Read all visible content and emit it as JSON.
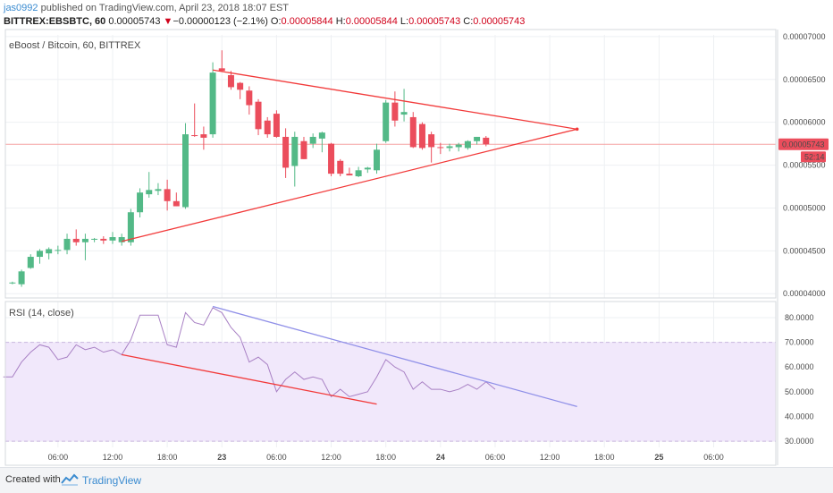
{
  "header": {
    "username": "jas0992",
    "published": " published on TradingView.com, April 23, 2018 18:07 EST"
  },
  "ticker": {
    "symbol": "BITTREX:EBSBTC, 60",
    "price": "0.00005743",
    "change_arrow": "▼",
    "change": "−0.00000123 (−2.1%)",
    "o_label": "O:",
    "o": "0.00005844",
    "h_label": "H:",
    "h": "0.00005844",
    "l_label": "L:",
    "l": "0.00005743",
    "c_label": "C:",
    "c": "0.00005743"
  },
  "footer": {
    "created": "Created with",
    "brand": "TradingView"
  },
  "colors": {
    "up": "#53b987",
    "down": "#eb4d5c",
    "trend": "#f23a3a",
    "rsi": "#a880c4",
    "rsi_trend": "#8f8fe8",
    "rsi_band": "#f1e8fb",
    "price_line": "#f5a3a3",
    "badge": "#eb4d5c"
  },
  "chart_data": [
    {
      "type": "candlestick",
      "title": "eBoost / Bitcoin, 60, BITTREX",
      "ylim": [
        3.95e-05,
        7.02e-05
      ],
      "y_ticks": [
        "0.00007000",
        "0.00006500",
        "0.00006000",
        "0.00005500",
        "0.00005000",
        "0.00004500",
        "0.00004000"
      ],
      "y_tick_values": [
        7e-05,
        6.5e-05,
        6e-05,
        5.5e-05,
        5e-05,
        4.5e-05,
        4e-05
      ],
      "x_ticks": [
        "06:00",
        "12:00",
        "18:00",
        "23",
        "06:00",
        "12:00",
        "18:00",
        "24",
        "06:00",
        "12:00",
        "18:00",
        "25",
        "06:00"
      ],
      "x_tick_values": [
        6,
        12,
        18,
        24,
        30,
        36,
        42,
        48,
        54,
        60,
        66,
        72,
        78
      ],
      "current_price": "0.00005743",
      "current_value": 5.743e-05,
      "countdown": "52:14",
      "candles": [
        {
          "t": 1,
          "o": 4.125e-05,
          "h": 4.14e-05,
          "l": 4.11e-05,
          "c": 4.13e-05
        },
        {
          "t": 2,
          "o": 4.11e-05,
          "h": 4.28e-05,
          "l": 4.08e-05,
          "c": 4.26e-05
        },
        {
          "t": 3,
          "o": 4.3e-05,
          "h": 4.46e-05,
          "l": 4.29e-05,
          "c": 4.43e-05
        },
        {
          "t": 4,
          "o": 4.43e-05,
          "h": 4.52e-05,
          "l": 4.35e-05,
          "c": 4.5e-05
        },
        {
          "t": 5,
          "o": 4.47e-05,
          "h": 4.54e-05,
          "l": 4.4e-05,
          "c": 4.52e-05
        },
        {
          "t": 6,
          "o": 4.5e-05,
          "h": 4.56e-05,
          "l": 4.46e-05,
          "c": 4.51e-05
        },
        {
          "t": 7,
          "o": 4.51e-05,
          "h": 4.7e-05,
          "l": 4.46e-05,
          "c": 4.64e-05
        },
        {
          "t": 8,
          "o": 4.64e-05,
          "h": 4.75e-05,
          "l": 4.56e-05,
          "c": 4.6e-05
        },
        {
          "t": 9,
          "o": 4.6e-05,
          "h": 4.7e-05,
          "l": 4.39e-05,
          "c": 4.64e-05
        },
        {
          "t": 10,
          "o": 4.64e-05,
          "h": 4.65e-05,
          "l": 4.6e-05,
          "c": 4.64e-05
        },
        {
          "t": 11,
          "o": 4.64e-05,
          "h": 4.67e-05,
          "l": 4.58e-05,
          "c": 4.62e-05
        },
        {
          "t": 12,
          "o": 4.62e-05,
          "h": 4.72e-05,
          "l": 4.58e-05,
          "c": 4.66e-05
        },
        {
          "t": 13,
          "o": 4.6e-05,
          "h": 4.7e-05,
          "l": 4.56e-05,
          "c": 4.66e-05
        },
        {
          "t": 14,
          "o": 4.6e-05,
          "h": 4.99e-05,
          "l": 4.56e-05,
          "c": 4.95e-05
        },
        {
          "t": 15,
          "o": 4.95e-05,
          "h": 5.23e-05,
          "l": 4.89e-05,
          "c": 5.18e-05
        },
        {
          "t": 16,
          "o": 5.16e-05,
          "h": 5.42e-05,
          "l": 5.12e-05,
          "c": 5.21e-05
        },
        {
          "t": 17,
          "o": 5.2e-05,
          "h": 5.29e-05,
          "l": 5.15e-05,
          "c": 5.22e-05
        },
        {
          "t": 18,
          "o": 5.22e-05,
          "h": 5.33e-05,
          "l": 4.97e-05,
          "c": 5.08e-05
        },
        {
          "t": 19,
          "o": 5.08e-05,
          "h": 5.18e-05,
          "l": 5.02e-05,
          "c": 5.02e-05
        },
        {
          "t": 20,
          "o": 5.01e-05,
          "h": 5.99e-05,
          "l": 4.99e-05,
          "c": 5.86e-05
        },
        {
          "t": 21,
          "o": 5.85e-05,
          "h": 6.22e-05,
          "l": 5.83e-05,
          "c": 5.84e-05
        },
        {
          "t": 22,
          "o": 5.86e-05,
          "h": 5.95e-05,
          "l": 5.68e-05,
          "c": 5.82e-05
        },
        {
          "t": 23,
          "o": 5.86e-05,
          "h": 6.7e-05,
          "l": 5.82e-05,
          "c": 6.58e-05
        },
        {
          "t": 24,
          "o": 6.63e-05,
          "h": 6.84e-05,
          "l": 6.59e-05,
          "c": 6.6e-05
        },
        {
          "t": 25,
          "o": 6.55e-05,
          "h": 6.6e-05,
          "l": 6.38e-05,
          "c": 6.41e-05
        },
        {
          "t": 26,
          "o": 6.46e-05,
          "h": 6.47e-05,
          "l": 6.27e-05,
          "c": 6.38e-05
        },
        {
          "t": 27,
          "o": 6.37e-05,
          "h": 6.42e-05,
          "l": 6.09e-05,
          "c": 6.2e-05
        },
        {
          "t": 28,
          "o": 6.24e-05,
          "h": 6.27e-05,
          "l": 5.85e-05,
          "c": 5.92e-05
        },
        {
          "t": 29,
          "o": 6.02e-05,
          "h": 6.06e-05,
          "l": 5.82e-05,
          "c": 5.86e-05
        },
        {
          "t": 30,
          "o": 6.1e-05,
          "h": 6.14e-05,
          "l": 5.82e-05,
          "c": 5.83e-05
        },
        {
          "t": 31,
          "o": 5.83e-05,
          "h": 5.93e-05,
          "l": 5.35e-05,
          "c": 5.47e-05
        },
        {
          "t": 32,
          "o": 5.49e-05,
          "h": 5.89e-05,
          "l": 5.25e-05,
          "c": 5.83e-05
        },
        {
          "t": 33,
          "o": 5.78e-05,
          "h": 5.83e-05,
          "l": 5.57e-05,
          "c": 5.57e-05
        },
        {
          "t": 34,
          "o": 5.75e-05,
          "h": 5.87e-05,
          "l": 5.7e-05,
          "c": 5.83e-05
        },
        {
          "t": 35,
          "o": 5.81e-05,
          "h": 5.89e-05,
          "l": 5.65e-05,
          "c": 5.88e-05
        },
        {
          "t": 36,
          "o": 5.75e-05,
          "h": 5.76e-05,
          "l": 5.37e-05,
          "c": 5.4e-05
        },
        {
          "t": 37,
          "o": 5.55e-05,
          "h": 5.57e-05,
          "l": 5.37e-05,
          "c": 5.4e-05
        },
        {
          "t": 38,
          "o": 5.4e-05,
          "h": 5.47e-05,
          "l": 5.38e-05,
          "c": 5.38e-05
        },
        {
          "t": 39,
          "o": 5.37e-05,
          "h": 5.48e-05,
          "l": 5.36e-05,
          "c": 5.44e-05
        },
        {
          "t": 40,
          "o": 5.45e-05,
          "h": 5.48e-05,
          "l": 5.41e-05,
          "c": 5.47e-05
        },
        {
          "t": 41,
          "o": 5.44e-05,
          "h": 5.75e-05,
          "l": 5.4e-05,
          "c": 5.68e-05
        },
        {
          "t": 42,
          "o": 5.78e-05,
          "h": 6.26e-05,
          "l": 5.76e-05,
          "c": 6.23e-05
        },
        {
          "t": 43,
          "o": 6.23e-05,
          "h": 6.36e-05,
          "l": 5.95e-05,
          "c": 6.02e-05
        },
        {
          "t": 44,
          "o": 6.09e-05,
          "h": 6.39e-05,
          "l": 6.01e-05,
          "c": 6.12e-05
        },
        {
          "t": 45,
          "o": 6.06e-05,
          "h": 6.12e-05,
          "l": 5.7e-05,
          "c": 5.71e-05
        },
        {
          "t": 46,
          "o": 5.98e-05,
          "h": 6e-05,
          "l": 5.68e-05,
          "c": 5.7e-05
        },
        {
          "t": 47,
          "o": 5.86e-05,
          "h": 5.89e-05,
          "l": 5.53e-05,
          "c": 5.71e-05
        },
        {
          "t": 48,
          "o": 5.71e-05,
          "h": 5.76e-05,
          "l": 5.63e-05,
          "c": 5.7e-05
        },
        {
          "t": 49,
          "o": 5.7e-05,
          "h": 5.75e-05,
          "l": 5.66e-05,
          "c": 5.72e-05
        },
        {
          "t": 50,
          "o": 5.71e-05,
          "h": 5.76e-05,
          "l": 5.66e-05,
          "c": 5.74e-05
        },
        {
          "t": 51,
          "o": 5.7e-05,
          "h": 5.79e-05,
          "l": 5.68e-05,
          "c": 5.78e-05
        },
        {
          "t": 52,
          "o": 5.78e-05,
          "h": 5.83e-05,
          "l": 5.74e-05,
          "c": 5.83e-05
        },
        {
          "t": 53,
          "o": 5.82e-05,
          "h": 5.84e-05,
          "l": 5.72e-05,
          "c": 5.743e-05
        }
      ],
      "trendlines": [
        {
          "from": [
            23,
            6.61e-05
          ],
          "to": [
            63,
            5.92e-05
          ]
        },
        {
          "from": [
            13,
            4.61e-05
          ],
          "to": [
            63,
            5.92e-05
          ]
        }
      ]
    },
    {
      "type": "line",
      "title": "RSI (14, close)",
      "ylim": [
        27.5,
        86.5
      ],
      "y_ticks": [
        "80.0000",
        "70.0000",
        "60.0000",
        "50.0000",
        "40.0000",
        "30.0000"
      ],
      "y_tick_values": [
        80,
        70,
        60,
        50,
        40,
        30
      ],
      "band": [
        30,
        70
      ],
      "series": [
        {
          "values": [
            [
              0,
              56
            ],
            [
              1,
              56
            ],
            [
              2,
              62
            ],
            [
              3,
              66
            ],
            [
              4,
              69
            ],
            [
              5,
              68
            ],
            [
              6,
              63
            ],
            [
              7,
              64
            ],
            [
              8,
              69
            ],
            [
              9,
              67
            ],
            [
              10,
              68
            ],
            [
              11,
              66
            ],
            [
              12,
              67
            ],
            [
              13,
              65
            ],
            [
              14,
              71
            ],
            [
              15,
              81
            ],
            [
              16,
              81
            ],
            [
              17,
              81
            ],
            [
              18,
              69
            ],
            [
              19,
              68
            ],
            [
              20,
              82
            ],
            [
              21,
              78
            ],
            [
              22,
              77
            ],
            [
              23,
              84
            ],
            [
              24,
              82
            ],
            [
              25,
              76
            ],
            [
              26,
              72
            ],
            [
              27,
              62
            ],
            [
              28,
              64
            ],
            [
              29,
              61
            ],
            [
              30,
              50
            ],
            [
              31,
              55
            ],
            [
              32,
              58
            ],
            [
              33,
              55
            ],
            [
              34,
              56
            ],
            [
              35,
              55
            ],
            [
              36,
              48
            ],
            [
              37,
              51
            ],
            [
              38,
              48
            ],
            [
              39,
              49
            ],
            [
              40,
              50
            ],
            [
              41,
              56
            ],
            [
              42,
              63
            ],
            [
              43,
              60
            ],
            [
              44,
              58
            ],
            [
              45,
              51
            ],
            [
              46,
              54
            ],
            [
              47,
              51
            ],
            [
              48,
              51
            ],
            [
              49,
              50
            ],
            [
              50,
              51
            ],
            [
              51,
              53
            ],
            [
              52,
              51
            ],
            [
              53,
              54
            ],
            [
              54,
              51
            ]
          ]
        }
      ],
      "trendlines": [
        {
          "from": [
            23,
            84.5
          ],
          "to": [
            63,
            44
          ]
        },
        {
          "from": [
            13,
            65
          ],
          "to": [
            41,
            45
          ]
        }
      ]
    }
  ]
}
